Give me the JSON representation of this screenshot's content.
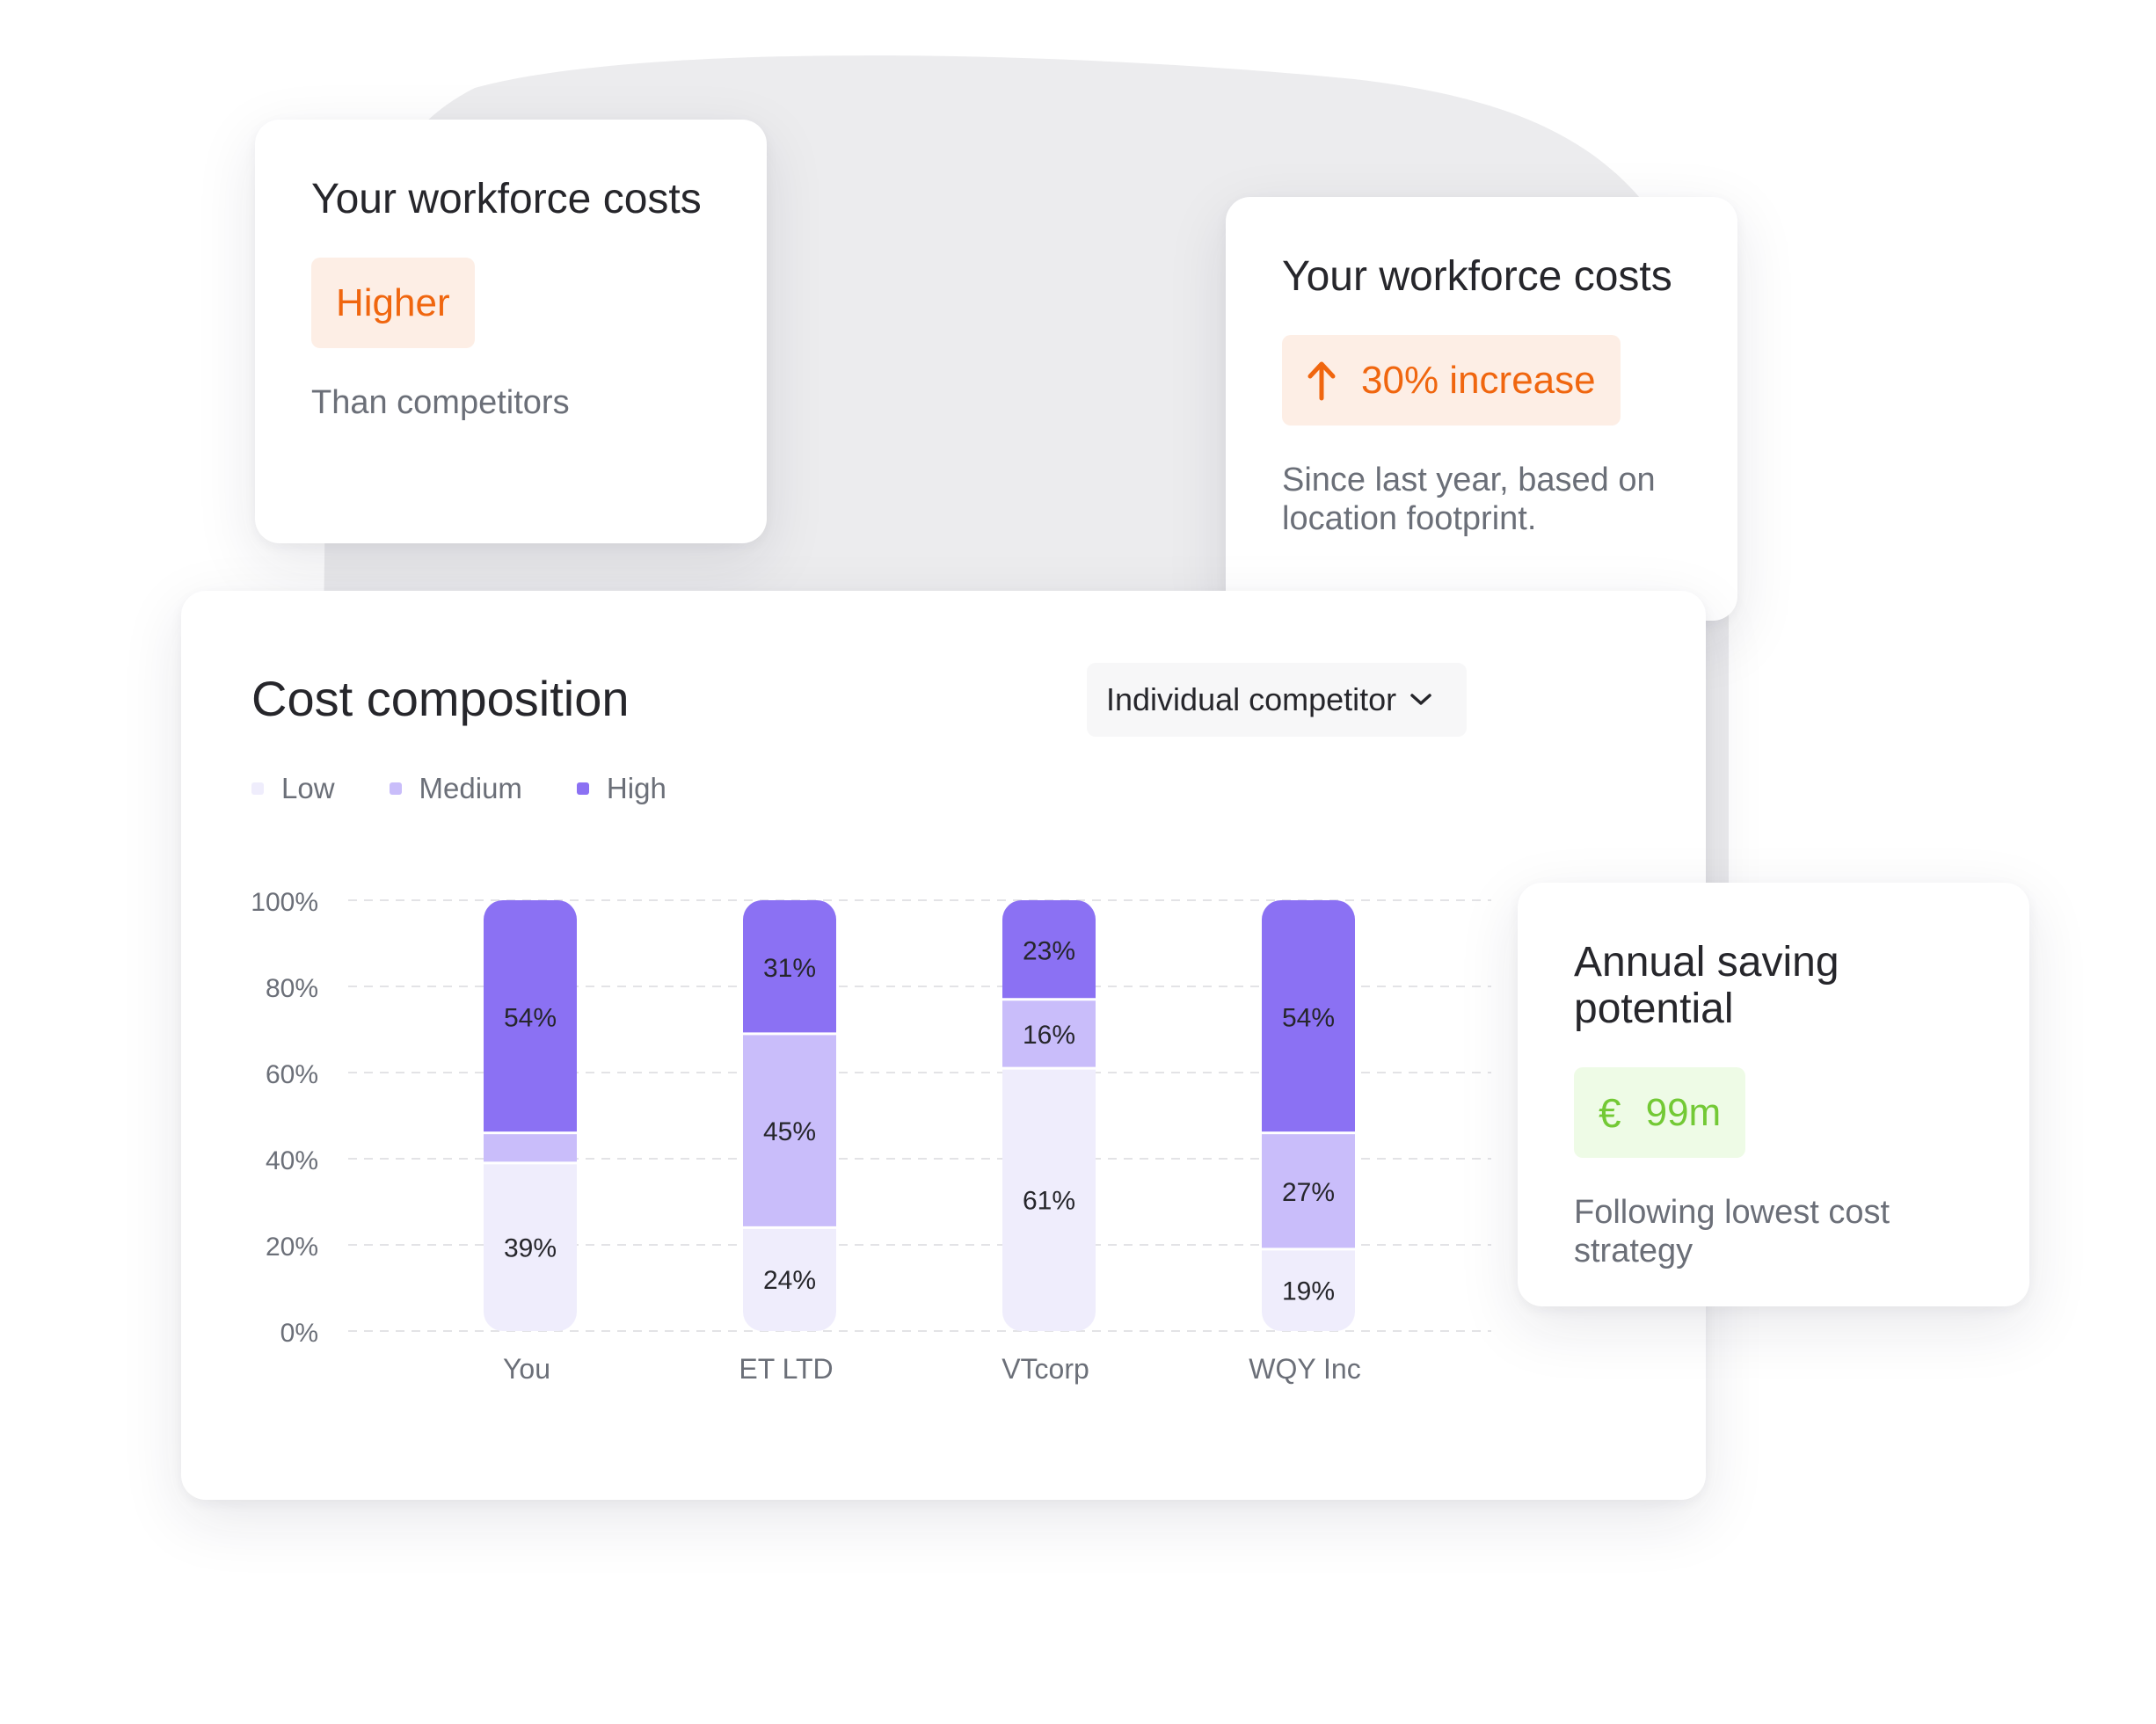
{
  "cards": {
    "higher": {
      "title": "Your workforce costs",
      "badge": "Higher",
      "note": "Than competitors"
    },
    "increase": {
      "title": "Your workforce costs",
      "badge": "30% increase",
      "badge_icon": "arrow-up-icon",
      "note": "Since last year, based on location footprint."
    },
    "saving": {
      "title": "Annual saving potential",
      "badge": "99m",
      "badge_icon": "euro-icon",
      "currency_symbol": "€",
      "note": "Following lowest cost strategy"
    }
  },
  "dropdown": {
    "selected": "Individual competitor",
    "icon": "chevron-down-icon"
  },
  "colors": {
    "low": "#efedfc",
    "medium": "#c9bdfa",
    "high": "#8b71f3",
    "accent_orange": "#f0660f",
    "accent_green": "#73c935"
  },
  "chart_data": {
    "type": "bar",
    "stacked": true,
    "title": "Cost composition",
    "categories": [
      "You",
      "ET LTD",
      "VTcorp",
      "WQY Inc"
    ],
    "series": [
      {
        "name": "Low",
        "values": [
          39,
          24,
          61,
          19
        ],
        "labels": [
          "39%",
          "24%",
          "61%",
          "19%"
        ]
      },
      {
        "name": "Medium",
        "values": [
          7,
          45,
          16,
          27
        ],
        "labels": [
          "",
          "45%",
          "16%",
          "27%"
        ]
      },
      {
        "name": "High",
        "values": [
          54,
          31,
          23,
          54
        ],
        "labels": [
          "54%",
          "31%",
          "23%",
          "54%"
        ]
      }
    ],
    "yticks": [
      "0%",
      "20%",
      "40%",
      "60%",
      "80%",
      "100%"
    ],
    "ylim": [
      0,
      100
    ],
    "grid": true,
    "legend_position": "top-left"
  }
}
